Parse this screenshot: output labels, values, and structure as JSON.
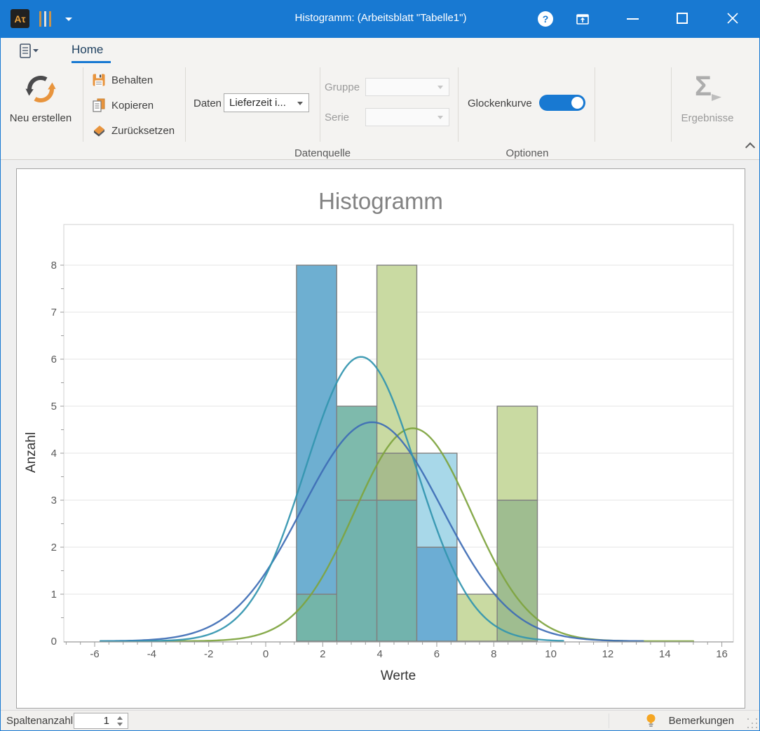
{
  "titlebar": {
    "title": "Histogramm:  (Arbeitsblatt \"Tabelle1\")",
    "logo_text": "Aτ",
    "help_glyph": "?"
  },
  "ribbon": {
    "tab_home": "Home",
    "neu_erstellen": "Neu erstellen",
    "behalten": "Behalten",
    "kopieren": "Kopieren",
    "zuruecksetzen": "Zurücksetzen",
    "daten_label": "Daten",
    "daten_value": "Lieferzeit i...",
    "gruppe_label": "Gruppe",
    "serie_label": "Serie",
    "group_datenquelle": "Datenquelle",
    "glockenkurve_label": "Glockenkurve",
    "glockenkurve_on": true,
    "group_optionen": "Optionen",
    "ergebnisse": "Ergebnisse"
  },
  "statusbar": {
    "spaltenanzahl_label": "Spaltenanzahl",
    "spaltenanzahl_value": "1",
    "bemerkungen": "Bemerkungen"
  },
  "palette": {
    "titlebar_blue": "#1879D2",
    "accent_orange": "#E8943D",
    "ribbon_bg": "#F4F3F1",
    "content_bg": "#EFEFEF",
    "toggle_on": "#1879D2"
  },
  "chart_data": {
    "type": "histogram",
    "title": "Histogramm",
    "xlabel": "Werte",
    "ylabel": "Anzahl",
    "x_ticks": [
      -6,
      -4,
      -2,
      0,
      2,
      4,
      6,
      8,
      10,
      12,
      14,
      16
    ],
    "x_minor_step": 0.5,
    "y_ticks": [
      0,
      1,
      2,
      3,
      4,
      5,
      6,
      7,
      8
    ],
    "xlim": [
      -7.1,
      16.4
    ],
    "ylim": [
      0,
      8.8
    ],
    "grid": "horizontal",
    "bin_edges": [
      1.08,
      2.49,
      3.9,
      5.3,
      6.71,
      8.12,
      9.53
    ],
    "series": [
      {
        "name": "blue",
        "bar_color": "#6EAFD1",
        "counts": [
          8,
          5,
          3,
          2,
          0,
          0
        ]
      },
      {
        "name": "cyan",
        "bar_color": "#A8D8E9",
        "counts": [
          0,
          3,
          4,
          4,
          0,
          0
        ]
      },
      {
        "name": "green",
        "bar_color": "#C9DAA2",
        "counts": [
          1,
          5,
          8,
          0,
          1,
          5
        ]
      },
      {
        "name": "dark-green",
        "bar_color": "#9FBD90",
        "counts": [
          0,
          0,
          0,
          0,
          0,
          3
        ]
      }
    ],
    "bars": [
      {
        "x0": 1.08,
        "x1": 2.49,
        "segments": [
          {
            "y0": 0,
            "y1": 1,
            "fill": "#74B5A9"
          },
          {
            "y0": 1,
            "y1": 8,
            "fill": "#6EAFD1"
          }
        ]
      },
      {
        "x0": 2.49,
        "x1": 3.9,
        "segments": [
          {
            "y0": 0,
            "y1": 3,
            "fill": "#72B3AD"
          },
          {
            "y0": 3,
            "y1": 5,
            "fill": "#7EBAAC"
          }
        ]
      },
      {
        "x0": 3.9,
        "x1": 5.3,
        "segments": [
          {
            "y0": 0,
            "y1": 3,
            "fill": "#72B3AD"
          },
          {
            "y0": 3,
            "y1": 4,
            "fill": "#A8BC8D"
          },
          {
            "y0": 4,
            "y1": 8,
            "fill": "#C9DAA2"
          }
        ]
      },
      {
        "x0": 5.3,
        "x1": 6.71,
        "segments": [
          {
            "y0": 0,
            "y1": 2,
            "fill": "#6CADD4"
          },
          {
            "y0": 2,
            "y1": 4,
            "fill": "#A8D8E9"
          }
        ]
      },
      {
        "x0": 6.71,
        "x1": 8.12,
        "segments": [
          {
            "y0": 0,
            "y1": 1,
            "fill": "#C9DAA2"
          }
        ]
      },
      {
        "x0": 8.12,
        "x1": 9.53,
        "segments": [
          {
            "y0": 0,
            "y1": 3,
            "fill": "#9FBD90"
          },
          {
            "y0": 3,
            "y1": 5,
            "fill": "#C9DAA2"
          }
        ]
      }
    ],
    "curves": [
      {
        "name": "bell-green",
        "color": "#7EA43E",
        "peak": 4.53,
        "mean": 5.16,
        "sigma": 2.05,
        "x_start": -5.8,
        "x_end": 15.0
      },
      {
        "name": "bell-blue",
        "color": "#3E6DB5",
        "peak": 4.66,
        "mean": 3.73,
        "sigma": 2.45,
        "x_start": -5.8,
        "x_end": 13.3
      },
      {
        "name": "bell-teal",
        "color": "#3295AF",
        "peak": 6.05,
        "mean": 3.34,
        "sigma": 1.95,
        "x_start": -5.8,
        "x_end": 10.5
      }
    ],
    "bar_border_color": "#7F7F7F",
    "grid_color": "#E4E4E4",
    "axis_color": "#9B9B9B",
    "tick_label_color": "#595959",
    "title_color": "#828282",
    "axis_label_color": "#333333"
  }
}
